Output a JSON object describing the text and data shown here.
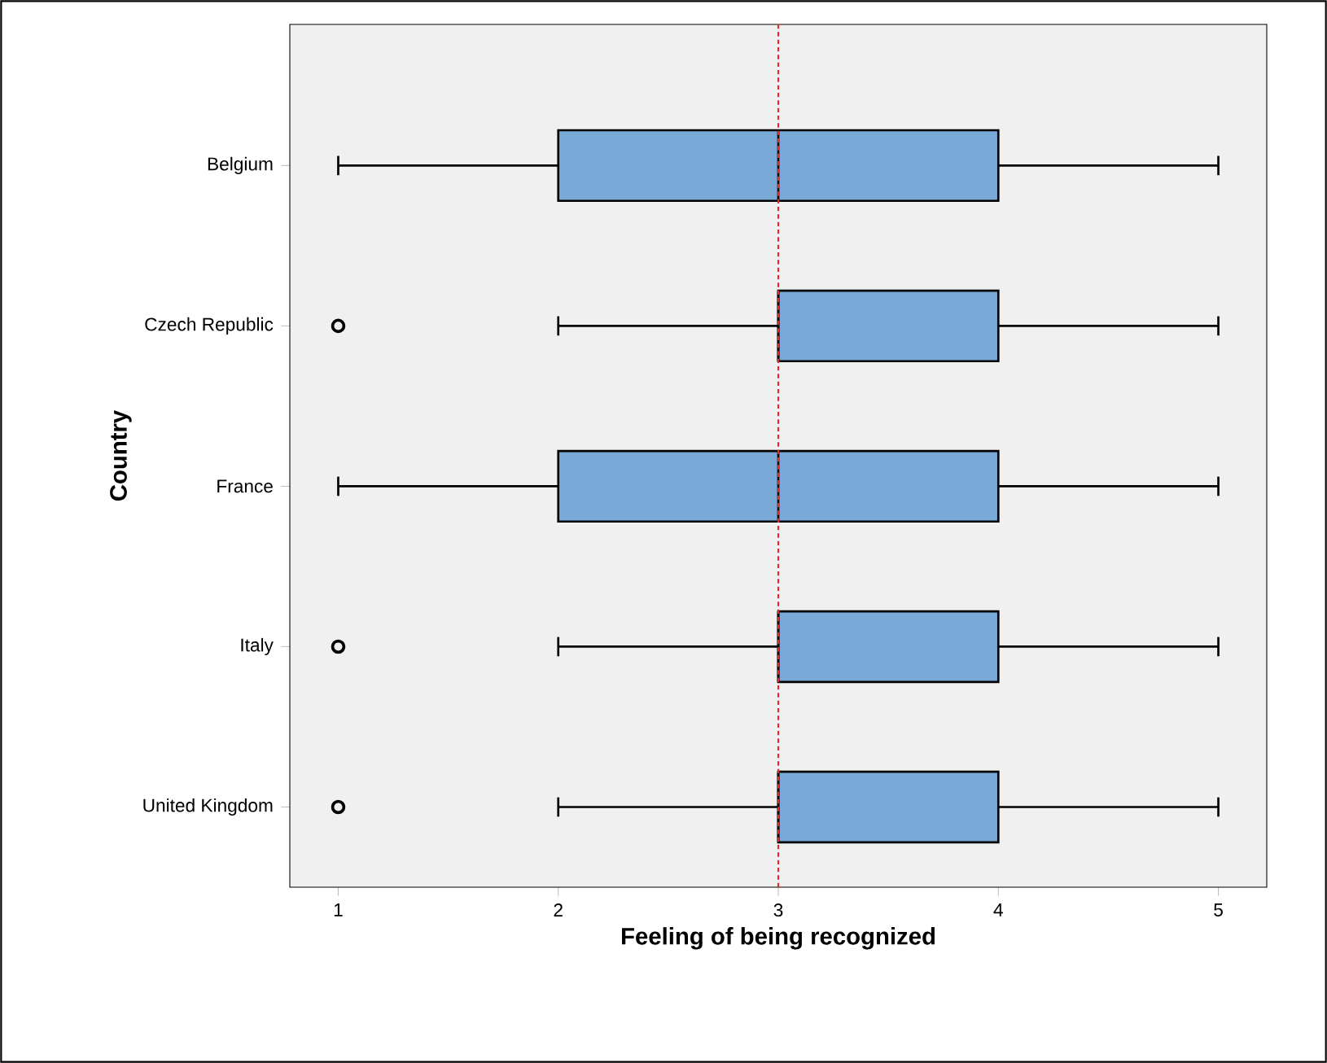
{
  "chart_data": {
    "type": "box",
    "orientation": "horizontal",
    "xlabel": "Feeling of being recognized",
    "ylabel": "Country",
    "categories": [
      "Belgium",
      "Czech Republic",
      "France",
      "Italy",
      "United Kingdom"
    ],
    "xlim": [
      0.78,
      5.22
    ],
    "xticks": [
      1,
      2,
      3,
      4,
      5
    ],
    "grid": false,
    "series": [
      {
        "color": "#79a9d6",
        "boxes": [
          {
            "low": 1,
            "q1": 2,
            "median": 3,
            "q3": 4,
            "high": 5
          },
          {
            "low": 2,
            "q1": 3,
            "median": 3,
            "q3": 4,
            "high": 5,
            "outliers": [
              1
            ]
          },
          {
            "low": 1,
            "q1": 2,
            "median": 3,
            "q3": 4,
            "high": 5
          },
          {
            "low": 2,
            "q1": 3,
            "median": 3,
            "q3": 4,
            "high": 5,
            "outliers": [
              1
            ]
          },
          {
            "low": 2,
            "q1": 3,
            "median": 3,
            "q3": 4,
            "high": 5,
            "outliers": [
              1
            ]
          }
        ]
      }
    ],
    "ref_lines": [
      {
        "axis": "x",
        "value": 3,
        "color": "#e8262b",
        "line_style": "dashed"
      }
    ]
  }
}
